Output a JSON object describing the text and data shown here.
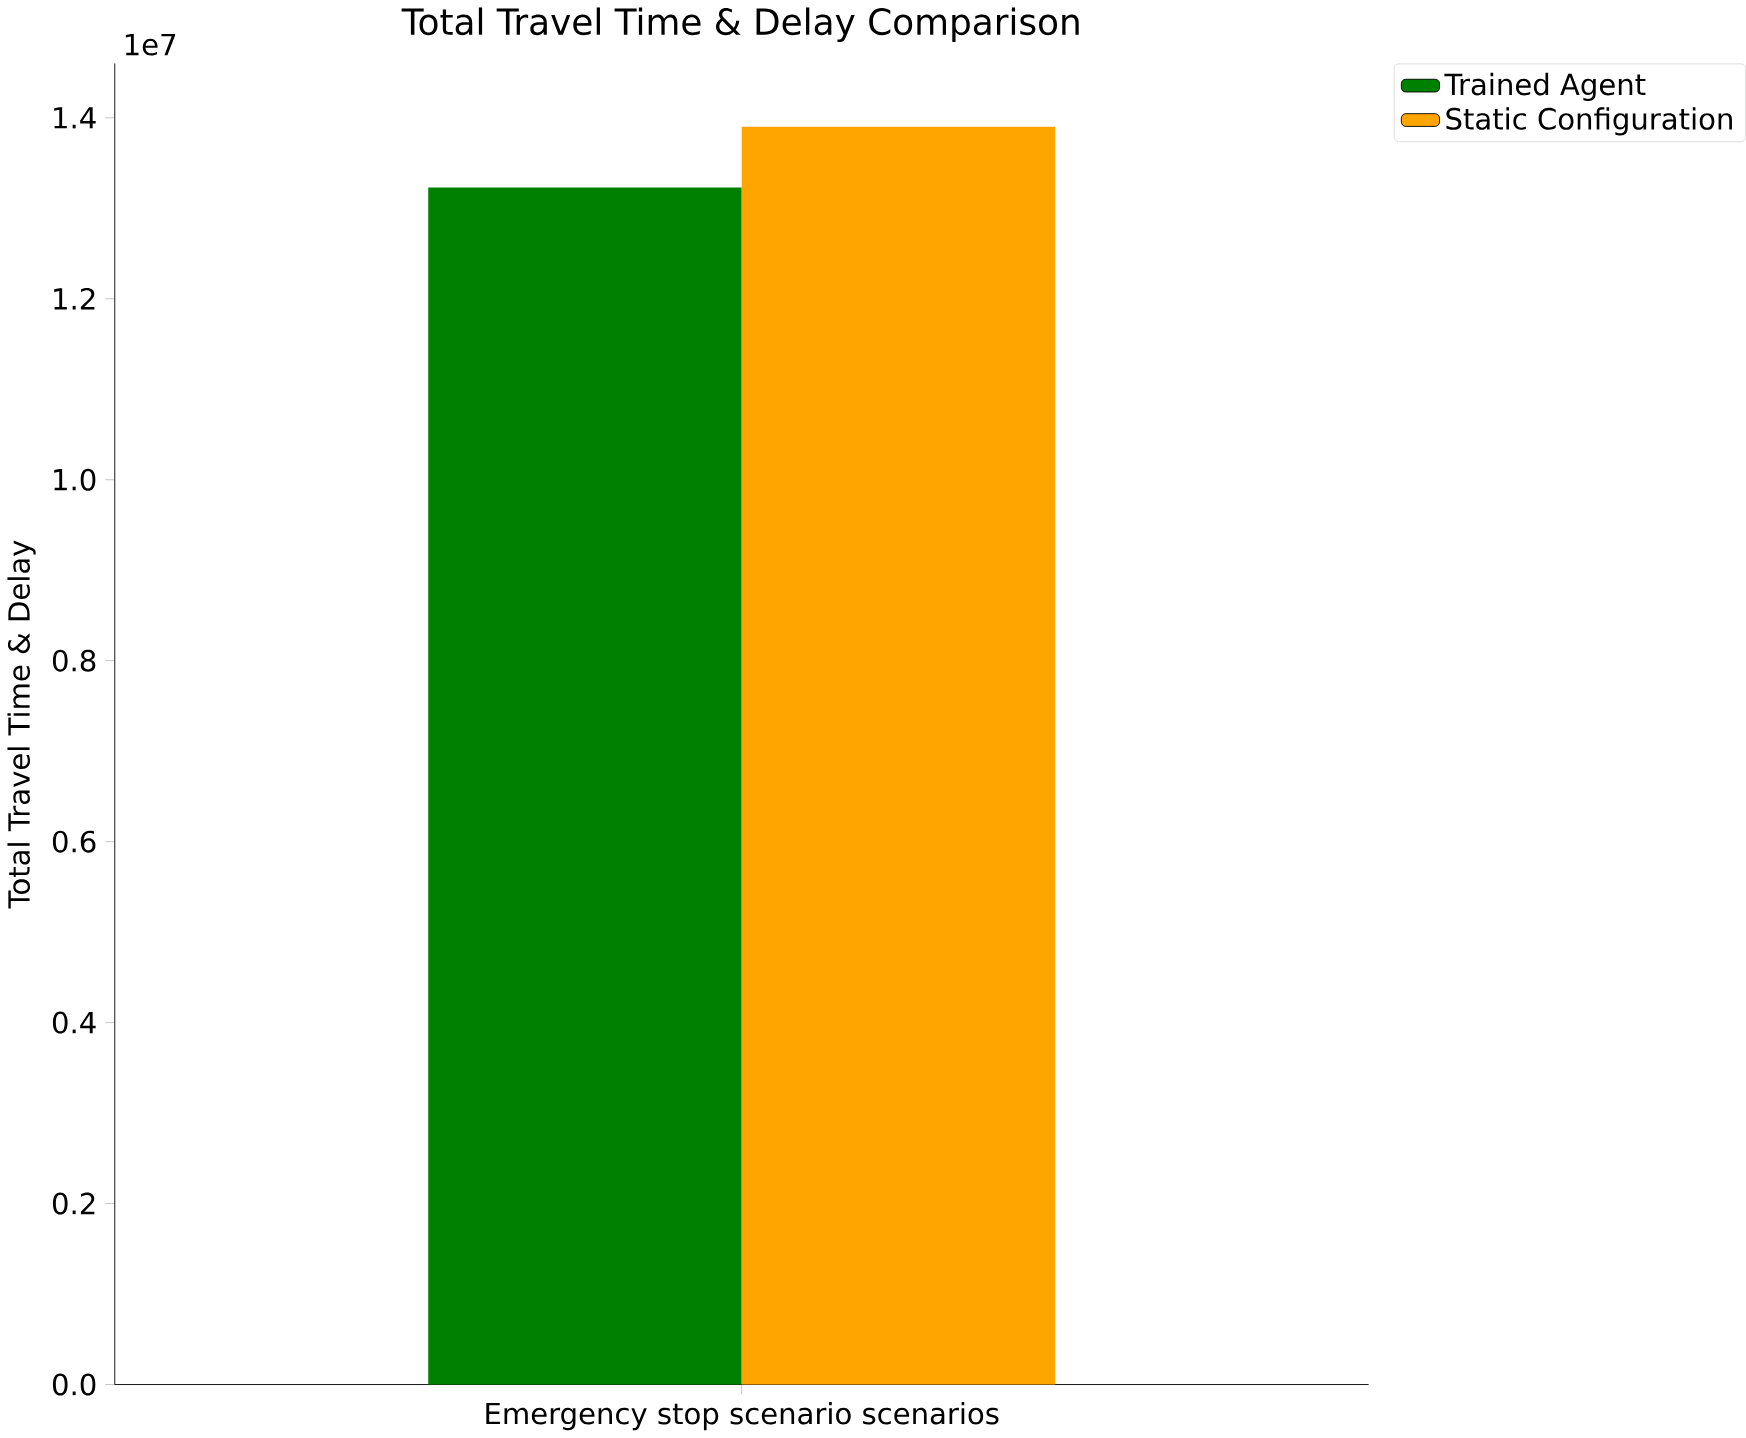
{
  "chart_data": {
    "type": "bar",
    "title": "Total Travel Time & Delay Comparison",
    "ylabel": "Total Travel Time & Delay",
    "categories": [
      "Emergency stop scenario scenarios"
    ],
    "series": [
      {
        "name": "Trained Agent",
        "color": "#008000",
        "values": [
          1.323
        ]
      },
      {
        "name": "Static Configuration",
        "color": "#ffa500",
        "values": [
          1.39
        ]
      }
    ],
    "ylim": [
      0,
      1.46
    ],
    "yticks": [
      {
        "value": 0,
        "label": "0.0"
      },
      {
        "value": 0.2,
        "label": "0.2"
      },
      {
        "value": 0.4,
        "label": "0.4"
      },
      {
        "value": 0.6,
        "label": "0.6"
      },
      {
        "value": 0.8,
        "label": "0.8"
      },
      {
        "value": 1.0,
        "label": "1.0"
      },
      {
        "value": 1.2,
        "label": "1.2"
      },
      {
        "value": 1.4,
        "label": "1.4"
      }
    ],
    "annotations": [
      "1e7"
    ],
    "legend": "top right",
    "grid": false
  }
}
